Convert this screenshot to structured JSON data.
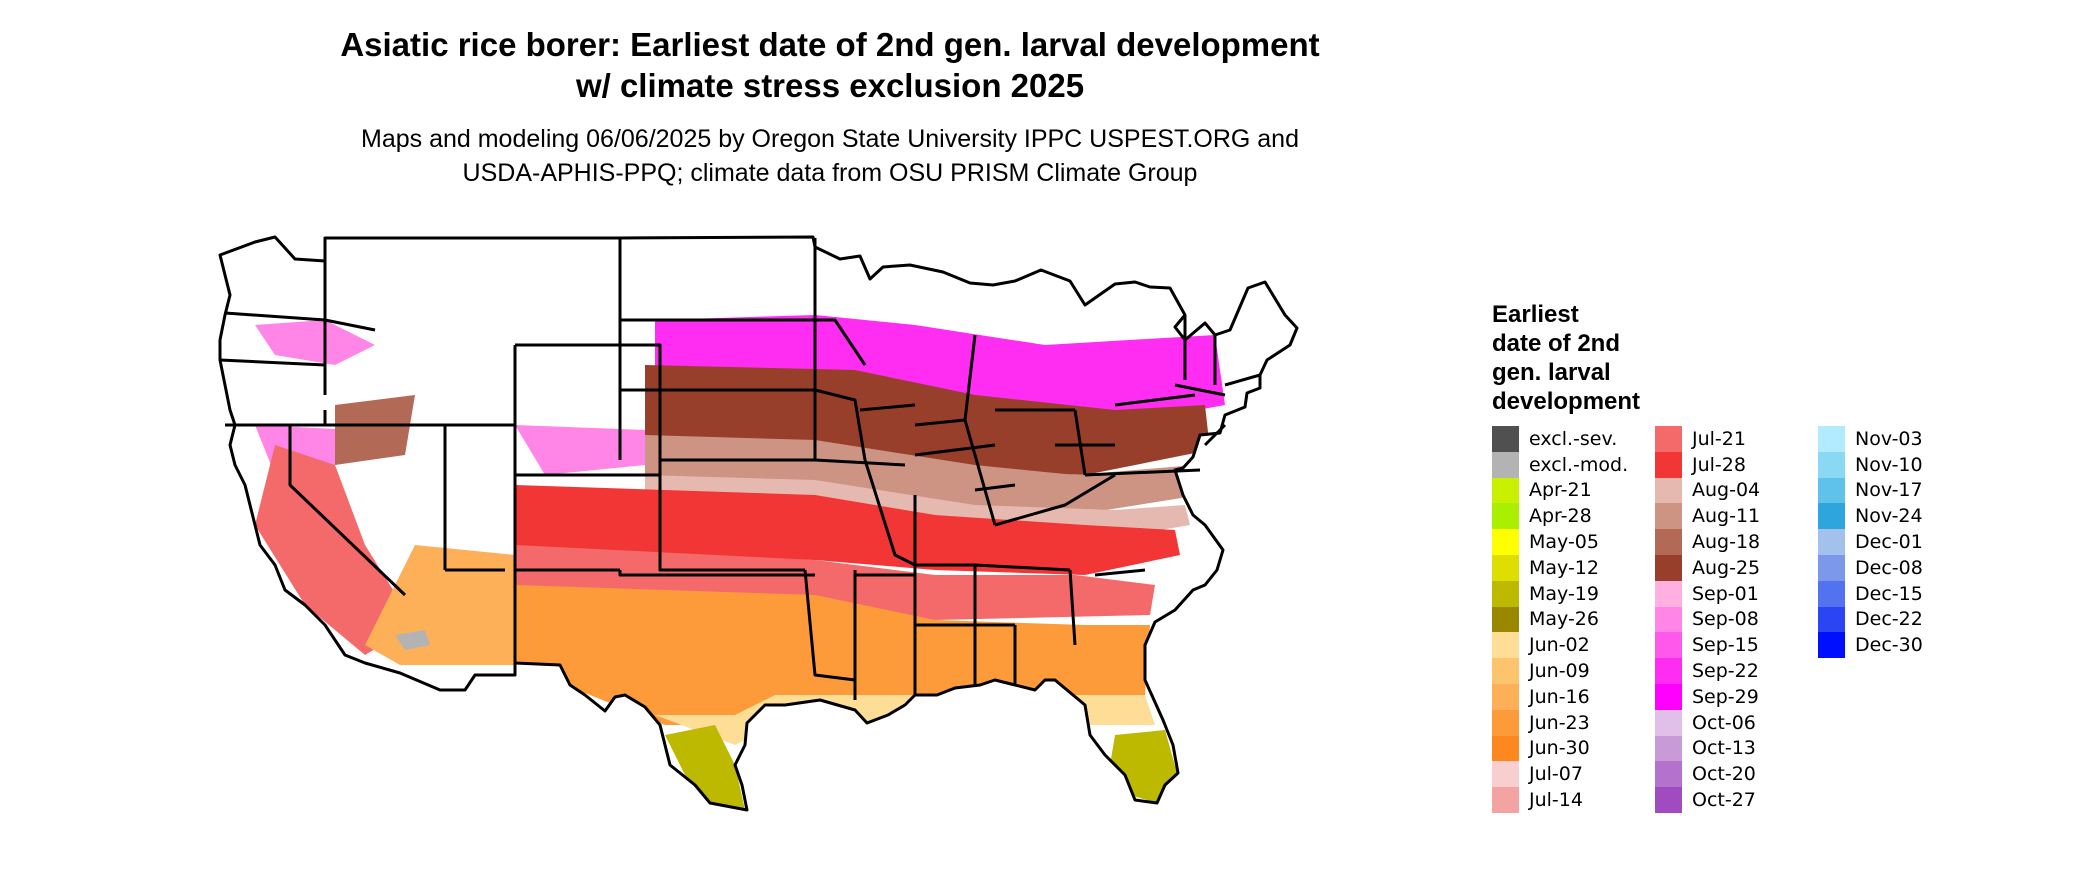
{
  "title": {
    "line1": "Asiatic rice borer: Earliest date of 2nd gen. larval development",
    "line2": "w/ climate stress exclusion 2025"
  },
  "subtitle": {
    "line1": "Maps and modeling 06/06/2025 by Oregon State University IPPC USPEST.ORG and",
    "line2": "USDA-APHIS-PPQ; climate data from OSU PRISM Climate Group"
  },
  "legend": {
    "title_lines": [
      "Earliest",
      "date of 2nd",
      "gen. larval",
      "development"
    ],
    "columns": [
      [
        {
          "label": "excl.-sev.",
          "color": "#505050"
        },
        {
          "label": "excl.-mod.",
          "color": "#b3b3b3"
        },
        {
          "label": "Apr-21",
          "color": "#c8f000"
        },
        {
          "label": "Apr-28",
          "color": "#aaee00"
        },
        {
          "label": "May-05",
          "color": "#ffff00"
        },
        {
          "label": "May-12",
          "color": "#dede00"
        },
        {
          "label": "May-19",
          "color": "#bdb800"
        },
        {
          "label": "May-26",
          "color": "#9a8700"
        },
        {
          "label": "Jun-02",
          "color": "#fedd96"
        },
        {
          "label": "Jun-09",
          "color": "#fdc46e"
        },
        {
          "label": "Jun-16",
          "color": "#fdb058"
        },
        {
          "label": "Jun-23",
          "color": "#fd9b3a"
        },
        {
          "label": "Jun-30",
          "color": "#fd8820"
        },
        {
          "label": "Jul-07",
          "color": "#f8cfcf"
        },
        {
          "label": "Jul-14",
          "color": "#f4a3a3"
        }
      ],
      [
        {
          "label": "Jul-21",
          "color": "#f46a6a"
        },
        {
          "label": "Jul-28",
          "color": "#f23636"
        },
        {
          "label": "Aug-04",
          "color": "#e6b9b0"
        },
        {
          "label": "Aug-11",
          "color": "#cd9484"
        },
        {
          "label": "Aug-18",
          "color": "#b26a56"
        },
        {
          "label": "Aug-25",
          "color": "#983f2c"
        },
        {
          "label": "Sep-01",
          "color": "#ffb0e0"
        },
        {
          "label": "Sep-08",
          "color": "#ff85e6"
        },
        {
          "label": "Sep-15",
          "color": "#ff58ea"
        },
        {
          "label": "Sep-22",
          "color": "#ff2cf2"
        },
        {
          "label": "Sep-29",
          "color": "#ff00ff"
        },
        {
          "label": "Oct-06",
          "color": "#e0c0e8"
        },
        {
          "label": "Oct-13",
          "color": "#c99ad8"
        },
        {
          "label": "Oct-20",
          "color": "#b572cc"
        },
        {
          "label": "Oct-27",
          "color": "#a04cc0"
        }
      ],
      [
        {
          "label": "Nov-03",
          "color": "#b2ebff"
        },
        {
          "label": "Nov-10",
          "color": "#8ad8f4"
        },
        {
          "label": "Nov-17",
          "color": "#5ec2ea"
        },
        {
          "label": "Nov-24",
          "color": "#2ea6dd"
        },
        {
          "label": "Dec-01",
          "color": "#a4c0ec"
        },
        {
          "label": "Dec-08",
          "color": "#7b98ea"
        },
        {
          "label": "Dec-15",
          "color": "#5272f0"
        },
        {
          "label": "Dec-22",
          "color": "#2a45f4"
        },
        {
          "label": "Dec-30",
          "color": "#0010ff"
        }
      ]
    ]
  },
  "map_colors": {
    "white": "#ffffff",
    "excl_mod": "#b3b3b3",
    "magenta": "#ff2cf2",
    "pink_light": "#ff85e6",
    "brown_dark": "#983f2c",
    "brown_mid": "#b26a56",
    "brown_light": "#cd9484",
    "salmon": "#e6b9b0",
    "red": "#f23636",
    "red_light": "#f46a6a",
    "pink_pale": "#f8cfcf",
    "orange": "#fd9b3a",
    "orange_light": "#fdb058",
    "peach": "#fedd96",
    "olive": "#bdb800",
    "border": "#000000"
  }
}
